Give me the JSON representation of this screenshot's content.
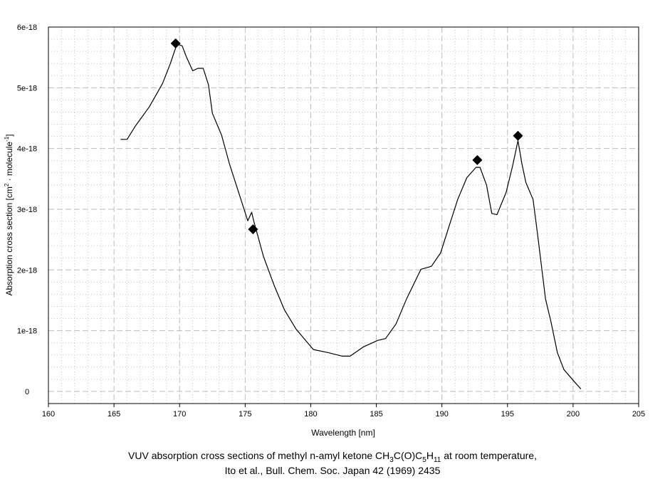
{
  "chart_data": {
    "type": "line",
    "title": "",
    "xlabel": "Wavelength [nm]",
    "ylabel_main": "Absorption cross section [cm",
    "ylabel_sup1": "2",
    "ylabel_mid": " · molecule",
    "ylabel_sup2": "-1",
    "ylabel_end": "]",
    "xlim": [
      160,
      205
    ],
    "ylim": [
      -0.2,
      6
    ],
    "y_unit_scale": "1e-18",
    "x_ticks": [
      160,
      165,
      170,
      175,
      180,
      185,
      190,
      195,
      200,
      205
    ],
    "x_tick_labels": [
      "160",
      "165",
      "170",
      "175",
      "180",
      "185",
      "190",
      "195",
      "200",
      "205"
    ],
    "y_ticks": [
      0,
      1,
      2,
      3,
      4,
      5,
      6
    ],
    "y_tick_labels": [
      "0",
      "1e-18",
      "2e-18",
      "3e-18",
      "4e-18",
      "5e-18",
      "6e-18"
    ],
    "grid": true,
    "series": [
      {
        "name": "cross section",
        "style": "line",
        "color": "#000000",
        "x": [
          165.5,
          166.0,
          166.6,
          167.7,
          168.7,
          169.3,
          169.8,
          170.2,
          170.5,
          171.0,
          171.4,
          171.8,
          172.2,
          172.5,
          173.2,
          173.8,
          174.5,
          175.2,
          175.5,
          175.65,
          176.4,
          177.2,
          178.0,
          178.9,
          180.2,
          181.3,
          182.4,
          183.0,
          184.0,
          185.1,
          185.7,
          186.5,
          187.3,
          188.4,
          189.2,
          189.9,
          190.5,
          191.2,
          191.9,
          192.6,
          192.9,
          193.4,
          193.8,
          194.2,
          194.9,
          195.4,
          195.8,
          196.1,
          196.4,
          196.95,
          197.3,
          197.9,
          198.3,
          198.8,
          199.3,
          200.1,
          200.6
        ],
        "y": [
          4.15,
          4.15,
          4.36,
          4.69,
          5.07,
          5.4,
          5.72,
          5.69,
          5.52,
          5.28,
          5.32,
          5.32,
          5.05,
          4.58,
          4.22,
          3.75,
          3.28,
          2.81,
          2.95,
          2.81,
          2.22,
          1.75,
          1.34,
          1.02,
          0.69,
          0.64,
          0.58,
          0.58,
          0.73,
          0.84,
          0.87,
          1.11,
          1.52,
          2.01,
          2.06,
          2.28,
          2.69,
          3.16,
          3.52,
          3.69,
          3.69,
          3.4,
          2.93,
          2.91,
          3.28,
          3.72,
          4.13,
          3.75,
          3.44,
          3.16,
          2.58,
          1.52,
          1.16,
          0.64,
          0.36,
          0.16,
          0.04
        ]
      },
      {
        "name": "peak markers",
        "style": "diamond",
        "color": "#000000",
        "x": [
          169.7,
          175.6,
          192.7,
          195.8
        ],
        "y": [
          5.73,
          2.67,
          3.81,
          4.21
        ]
      }
    ]
  },
  "caption": {
    "line1_pre": "VUV absorption cross sections of methyl n-amyl ketone CH",
    "sub1": "3",
    "line1_mid1": "C(O)C",
    "sub2": "5",
    "line1_mid2": "H",
    "sub3": "11",
    "line1_post": " at room temperature,",
    "line2": "Ito et al., Bull. Chem. Soc. Japan 42 (1969) 2435"
  }
}
